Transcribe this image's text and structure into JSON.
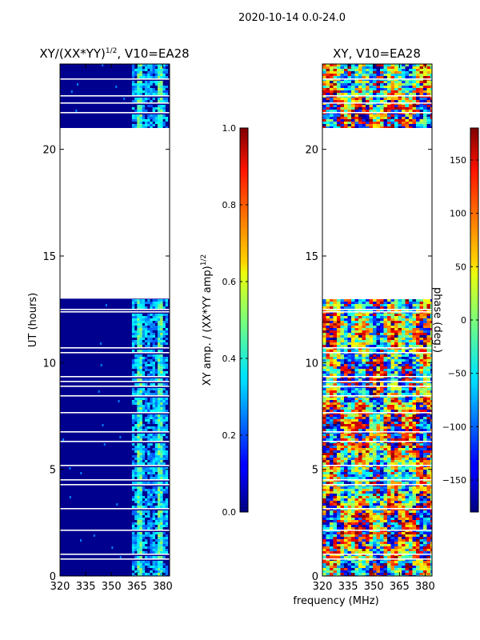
{
  "figure": {
    "suptitle": "2020-10-14 0.0-24.0"
  },
  "chart_data": [
    {
      "type": "heatmap",
      "title_main": "XY/(XX*YY)",
      "title_sup": "1/2",
      "title_tail": ", V10=EA28",
      "xlabel": "",
      "ylabel": "UT (hours)",
      "xlim": [
        320,
        384
      ],
      "ylim": [
        0,
        24
      ],
      "xticks": [
        "320",
        "335",
        "350",
        "365",
        "380"
      ],
      "yticks": [
        "0",
        "5",
        "10",
        "15",
        "20"
      ],
      "xtick_values": [
        320,
        335,
        350,
        365,
        380
      ],
      "ytick_values": [
        0,
        5,
        10,
        15,
        20
      ],
      "data_gap_hours": [
        13.0,
        21.0
      ],
      "colorbar": {
        "label_main": "XY amp. / (XX*YY amp)",
        "label_sup": "1/2",
        "range": [
          0.0,
          1.0
        ],
        "ticks": [
          "0.0",
          "0.2",
          "0.4",
          "0.6",
          "0.8",
          "1.0"
        ],
        "tick_values": [
          0.0,
          0.2,
          0.4,
          0.6,
          0.8,
          1.0
        ]
      }
    },
    {
      "type": "heatmap",
      "title": "XY, V10=EA28",
      "xlabel": "frequency (MHz)",
      "ylabel": "",
      "xlim": [
        320,
        384
      ],
      "ylim": [
        0,
        24
      ],
      "xticks": [
        "320",
        "335",
        "350",
        "365",
        "380"
      ],
      "yticks": [
        "0",
        "5",
        "10",
        "15",
        "20"
      ],
      "xtick_values": [
        320,
        335,
        350,
        365,
        380
      ],
      "ytick_values": [
        0,
        5,
        10,
        15,
        20
      ],
      "data_gap_hours": [
        13.0,
        21.0
      ],
      "colorbar": {
        "label": "phase (deg.)",
        "range": [
          -180,
          180
        ],
        "ticks": [
          "−150",
          "−100",
          "−50",
          "0",
          "50",
          "100",
          "150"
        ],
        "tick_values": [
          -150,
          -100,
          -50,
          0,
          50,
          100,
          150
        ]
      }
    }
  ]
}
